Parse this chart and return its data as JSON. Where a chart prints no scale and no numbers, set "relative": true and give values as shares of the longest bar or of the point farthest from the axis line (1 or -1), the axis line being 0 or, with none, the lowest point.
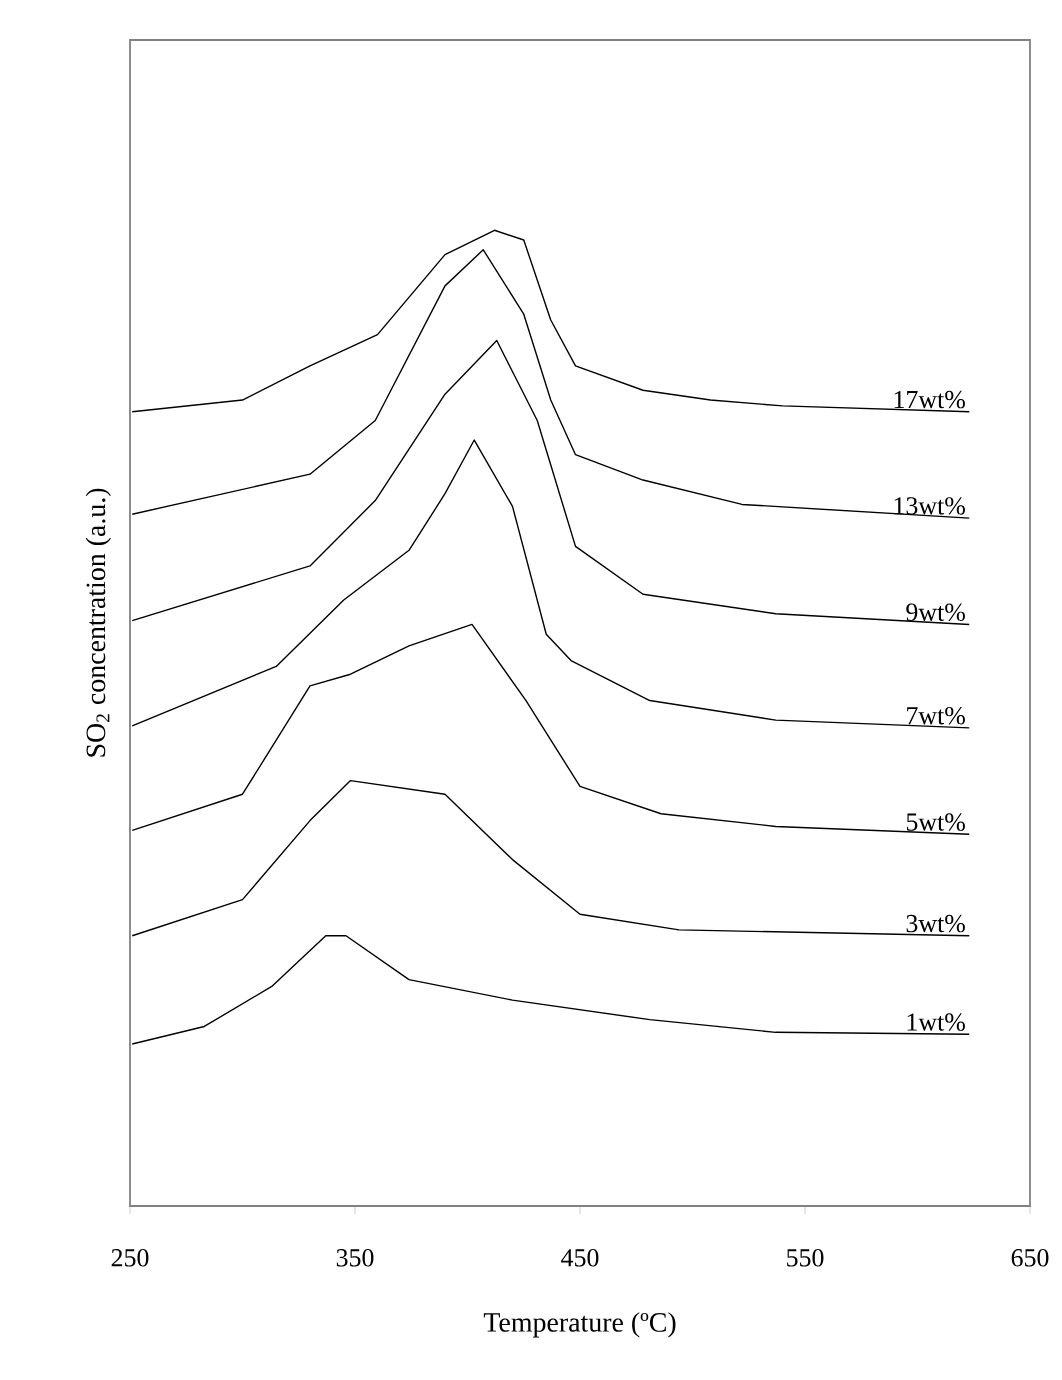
{
  "chart_data": {
    "type": "line",
    "relative": true,
    "xlabel": "Temperature (ºC)",
    "ylabel": "SO$_{2}$ concentration (a.u.)",
    "xlim": [
      250,
      650
    ],
    "xticks": [
      250,
      350,
      450,
      550,
      650
    ],
    "legend": false,
    "grid": false,
    "marker": "none",
    "line_style": "solid",
    "series": [
      {
        "name": "17wt%",
        "color": "#000000",
        "x": [
          251,
          300,
          330,
          360,
          390,
          412,
          425,
          437,
          448,
          478,
          508,
          540,
          623
        ],
        "values": [
          0.814,
          0.826,
          0.861,
          0.893,
          0.975,
          1.0,
          0.99,
          0.908,
          0.861,
          0.836,
          0.826,
          0.82,
          0.814
        ]
      },
      {
        "name": "13wt%",
        "color": "#000000",
        "x": [
          251,
          330,
          359,
          390,
          407,
          425,
          437,
          448,
          478,
          522,
          623
        ],
        "values": [
          0.709,
          0.75,
          0.805,
          0.943,
          0.98,
          0.914,
          0.826,
          0.77,
          0.744,
          0.719,
          0.705
        ]
      },
      {
        "name": "9wt%",
        "color": "#000000",
        "x": [
          251,
          330,
          359,
          390,
          413,
          431,
          448,
          478,
          537,
          623
        ],
        "values": [
          0.6,
          0.656,
          0.723,
          0.832,
          0.887,
          0.805,
          0.676,
          0.627,
          0.607,
          0.596
        ]
      },
      {
        "name": "7wt%",
        "color": "#000000",
        "x": [
          251,
          315,
          345,
          374,
          390,
          403,
          420,
          435,
          446,
          481,
          537,
          623
        ],
        "values": [
          0.492,
          0.553,
          0.621,
          0.672,
          0.73,
          0.785,
          0.717,
          0.586,
          0.559,
          0.518,
          0.498,
          0.49
        ]
      },
      {
        "name": "5wt%",
        "color": "#000000",
        "x": [
          251,
          300,
          330,
          348,
          374,
          402,
          426,
          450,
          486,
          537,
          623
        ],
        "values": [
          0.385,
          0.422,
          0.533,
          0.545,
          0.574,
          0.596,
          0.518,
          0.43,
          0.402,
          0.389,
          0.381
        ]
      },
      {
        "name": "3wt%",
        "color": "#000000",
        "x": [
          251,
          300,
          330,
          348,
          390,
          420,
          450,
          494,
          623
        ],
        "values": [
          0.277,
          0.314,
          0.395,
          0.436,
          0.422,
          0.355,
          0.299,
          0.283,
          0.277
        ]
      },
      {
        "name": "1wt%",
        "color": "#000000",
        "x": [
          251,
          283,
          313,
          337,
          346,
          374,
          420,
          481,
          537,
          623
        ],
        "values": [
          0.166,
          0.184,
          0.225,
          0.277,
          0.277,
          0.232,
          0.211,
          0.191,
          0.178,
          0.176
        ]
      }
    ]
  }
}
